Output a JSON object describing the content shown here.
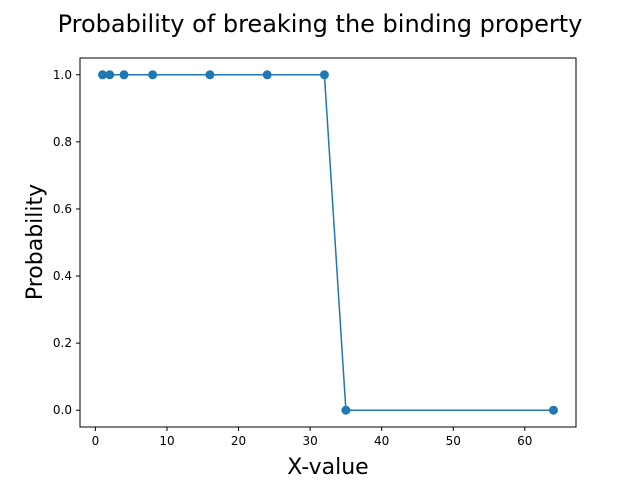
{
  "chart_data": {
    "type": "line",
    "title": "Probability of breaking the binding property",
    "xlabel": "X-value",
    "ylabel": "Probability",
    "x": [
      1,
      2,
      4,
      8,
      16,
      24,
      32,
      35,
      64
    ],
    "series": [
      {
        "name": "",
        "values": [
          1.0,
          1.0,
          1.0,
          1.0,
          1.0,
          1.0,
          1.0,
          0.0,
          0.0
        ],
        "color": "#1f77b4",
        "marker": "circle"
      }
    ],
    "xlim": [
      -2.15,
      67.15
    ],
    "ylim": [
      -0.05,
      1.05
    ],
    "xticks": [
      0,
      10,
      20,
      30,
      40,
      50,
      60
    ],
    "xtick_labels": [
      "0",
      "10",
      "20",
      "30",
      "40",
      "50",
      "60"
    ],
    "yticks": [
      0.0,
      0.2,
      0.4,
      0.6,
      0.8,
      1.0
    ],
    "ytick_labels": [
      "0.0",
      "0.2",
      "0.4",
      "0.6",
      "0.8",
      "1.0"
    ],
    "grid": false,
    "legend": "none"
  }
}
